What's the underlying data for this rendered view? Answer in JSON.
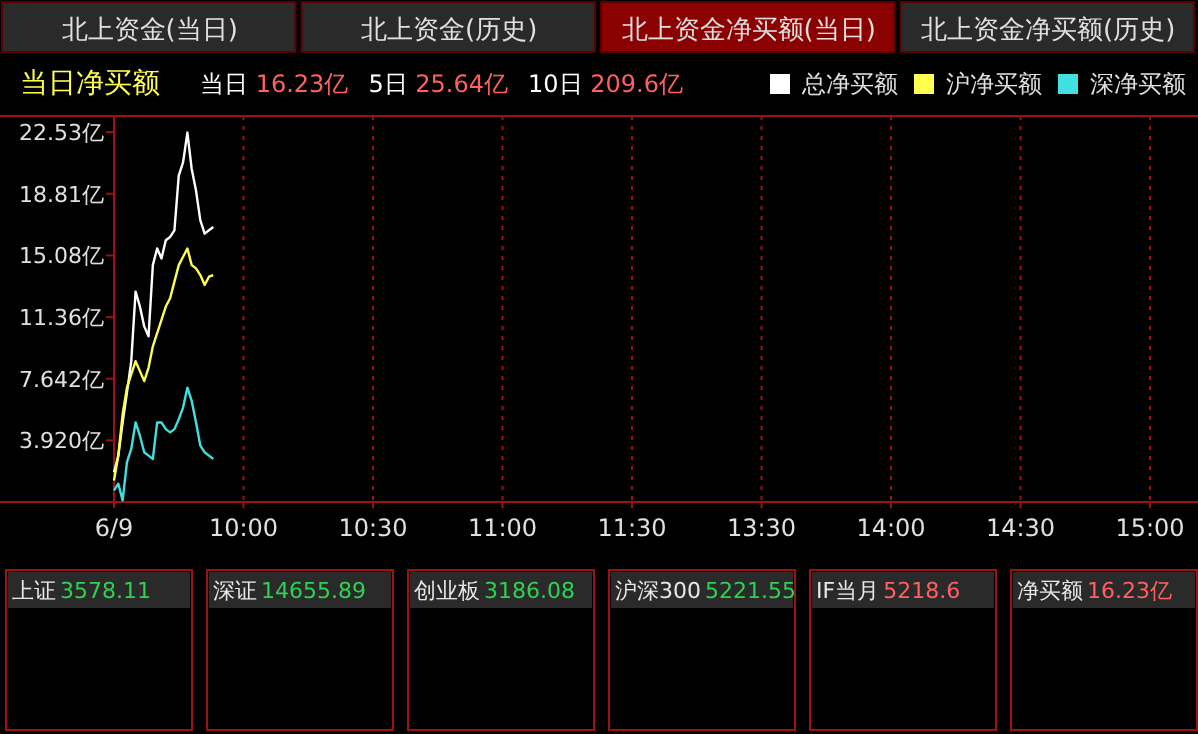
{
  "chart_data": [
    {
      "type": "other",
      "annotations": [
        "北上资金(当日)",
        "北上资金(历史)",
        "北上资金净买额(当日)",
        "北上资金净买额(历史)"
      ],
      "colors": [
        "#2a2a2a",
        "#2a2a2a",
        "#8b0000",
        "#2a2a2a"
      ]
    },
    {
      "type": "line",
      "title": "当日净买额",
      "annotations": [
        "当日 16.23亿",
        "5日 25.64亿",
        "10日 209.6亿"
      ],
      "legend": "top right",
      "grid": "x",
      "line_style": "solid",
      "marker": "none",
      "categories": [
        "6/9",
        null,
        null,
        null,
        null,
        null,
        null,
        null,
        null,
        null,
        null,
        null,
        null,
        null,
        null,
        null,
        null,
        null,
        null,
        null,
        null,
        null,
        null,
        null,
        null,
        null,
        null,
        null,
        null,
        null,
        "10:00",
        null,
        null,
        null,
        null,
        null,
        null,
        null,
        null,
        null,
        null,
        null,
        null,
        null,
        null,
        null,
        null,
        null,
        null,
        null,
        null,
        null,
        null,
        null,
        null,
        null,
        null,
        null,
        null,
        null,
        "10:30",
        null,
        null,
        null,
        null,
        null,
        null,
        null,
        null,
        null,
        null,
        null,
        null,
        null,
        null,
        null,
        null,
        null,
        null,
        null,
        null,
        null,
        null,
        null,
        null,
        null,
        null,
        null,
        null,
        null,
        "11:00",
        null,
        null,
        null,
        null,
        null,
        null,
        null,
        null,
        null,
        null,
        null,
        null,
        null,
        null,
        null,
        null,
        null,
        null,
        null,
        null,
        null,
        null,
        null,
        null,
        null,
        null,
        null,
        null,
        null,
        "11:30",
        null,
        null,
        null,
        null,
        null,
        null,
        null,
        null,
        null,
        null,
        null,
        null,
        null,
        null,
        null,
        null,
        null,
        null,
        null,
        null,
        null,
        null,
        null,
        null,
        null,
        null,
        null,
        null,
        null,
        "13:30",
        null,
        null,
        null,
        null,
        null,
        null,
        null,
        null,
        null,
        null,
        null,
        null,
        null,
        null,
        null,
        null,
        null,
        null,
        null,
        null,
        null,
        null,
        null,
        null,
        null,
        null,
        null,
        null,
        null,
        "14:00",
        null,
        null,
        null,
        null,
        null,
        null,
        null,
        null,
        null,
        null,
        null,
        null,
        null,
        null,
        null,
        null,
        null,
        null,
        null,
        null,
        null,
        null,
        null,
        null,
        null,
        null,
        null,
        null,
        null,
        "14:30",
        null,
        null,
        null,
        null,
        null,
        null,
        null,
        null,
        null,
        null,
        null,
        null,
        null,
        null,
        null,
        null,
        null,
        null,
        null,
        null,
        null,
        null,
        null,
        null,
        null,
        null,
        null,
        null,
        null,
        "15:00"
      ],
      "ylim": [
        0.2,
        23.5
      ],
      "yticks": [
        {
          "value": 3.92,
          "label": "3.920亿"
        },
        {
          "value": 7.642,
          "label": "7.642亿"
        },
        {
          "value": 11.36,
          "label": "11.36亿"
        },
        {
          "value": 15.08,
          "label": "15.08亿"
        },
        {
          "value": 18.81,
          "label": "18.81亿"
        },
        {
          "value": 22.53,
          "label": "22.53亿"
        }
      ],
      "series": [
        {
          "name": "总净买额",
          "color": "#ffffff",
          "values": [
            2.0,
            3.0,
            5.0,
            6.8,
            8.7,
            12.9,
            12.0,
            10.8,
            10.2,
            14.5,
            15.5,
            14.9,
            16.0,
            16.2,
            16.6,
            19.9,
            20.7,
            22.5,
            20.3,
            19.0,
            17.2,
            16.4,
            16.6,
            16.8,
            null,
            null,
            null,
            null,
            null,
            null,
            null,
            null,
            null,
            null,
            null,
            null,
            null,
            null,
            null,
            null,
            null,
            null,
            null,
            null,
            null,
            null,
            null,
            null,
            null,
            null,
            null,
            null,
            null,
            null,
            null,
            null,
            null,
            null,
            null,
            null,
            null,
            null,
            null,
            null,
            null,
            null,
            null,
            null,
            null,
            null,
            null,
            null,
            null,
            null,
            null,
            null,
            null,
            null,
            null,
            null,
            null,
            null,
            null,
            null,
            null,
            null,
            null,
            null,
            null,
            null,
            null,
            null,
            null,
            null,
            null,
            null,
            null,
            null,
            null,
            null,
            null,
            null,
            null,
            null,
            null,
            null,
            null,
            null,
            null,
            null,
            null,
            null,
            null,
            null,
            null,
            null,
            null,
            null,
            null,
            null,
            null,
            null,
            null,
            null,
            null,
            null,
            null,
            null,
            null,
            null,
            null,
            null,
            null,
            null,
            null,
            null,
            null,
            null,
            null,
            null,
            null,
            null,
            null,
            null,
            null,
            null,
            null,
            null,
            null,
            null,
            null,
            null,
            null,
            null,
            null,
            null,
            null,
            null,
            null,
            null,
            null,
            null,
            null,
            null,
            null,
            null,
            null,
            null,
            null,
            null,
            null,
            null,
            null,
            null,
            null,
            null,
            null,
            null,
            null,
            null,
            null,
            null,
            null,
            null,
            null,
            null,
            null,
            null,
            null,
            null,
            null,
            null,
            null,
            null,
            null,
            null,
            null,
            null,
            null,
            null,
            null,
            null,
            null,
            null,
            null,
            null,
            null,
            null,
            null,
            null,
            null,
            null,
            null,
            null,
            null,
            null,
            null,
            null,
            null,
            null,
            null,
            null,
            null,
            null,
            null,
            null,
            null,
            null,
            null,
            null,
            null,
            null,
            null,
            null,
            null,
            null,
            null,
            null,
            null,
            null,
            null
          ]
        },
        {
          "name": "沪净买额",
          "color": "#ffff50",
          "values": [
            1.5,
            3.0,
            5.5,
            7.1,
            7.9,
            8.7,
            8.1,
            7.5,
            8.3,
            9.6,
            10.4,
            11.2,
            12.0,
            12.5,
            13.5,
            14.5,
            15.0,
            15.5,
            14.5,
            14.3,
            13.9,
            13.3,
            13.8,
            13.9,
            null,
            null,
            null,
            null,
            null,
            null,
            null,
            null,
            null,
            null,
            null,
            null,
            null,
            null,
            null,
            null,
            null,
            null,
            null,
            null,
            null,
            null,
            null,
            null,
            null,
            null,
            null,
            null,
            null,
            null,
            null,
            null,
            null,
            null,
            null,
            null,
            null,
            null,
            null,
            null,
            null,
            null,
            null,
            null,
            null,
            null,
            null,
            null,
            null,
            null,
            null,
            null,
            null,
            null,
            null,
            null,
            null,
            null,
            null,
            null,
            null,
            null,
            null,
            null,
            null,
            null,
            null,
            null,
            null,
            null,
            null,
            null,
            null,
            null,
            null,
            null,
            null,
            null,
            null,
            null,
            null,
            null,
            null,
            null,
            null,
            null,
            null,
            null,
            null,
            null,
            null,
            null,
            null,
            null,
            null,
            null,
            null,
            null,
            null,
            null,
            null,
            null,
            null,
            null,
            null,
            null,
            null,
            null,
            null,
            null,
            null,
            null,
            null,
            null,
            null,
            null,
            null,
            null,
            null,
            null,
            null,
            null,
            null,
            null,
            null,
            null,
            null,
            null,
            null,
            null,
            null,
            null,
            null,
            null,
            null,
            null,
            null,
            null,
            null,
            null,
            null,
            null,
            null,
            null,
            null,
            null,
            null,
            null,
            null,
            null,
            null,
            null,
            null,
            null,
            null,
            null,
            null,
            null,
            null,
            null,
            null,
            null,
            null,
            null,
            null,
            null,
            null,
            null,
            null,
            null,
            null,
            null,
            null,
            null,
            null,
            null,
            null,
            null,
            null,
            null,
            null,
            null,
            null,
            null,
            null,
            null,
            null,
            null,
            null,
            null,
            null,
            null,
            null,
            null,
            null,
            null,
            null,
            null,
            null,
            null,
            null,
            null,
            null,
            null,
            null,
            null,
            null,
            null,
            null,
            null,
            null,
            null,
            null,
            null,
            null,
            null,
            null
          ]
        },
        {
          "name": "深净买额",
          "color": "#40e0e0",
          "values": [
            0.9,
            1.3,
            0.3,
            2.6,
            3.4,
            5.0,
            4.2,
            3.2,
            3.0,
            2.8,
            5.0,
            5.0,
            4.6,
            4.4,
            4.6,
            5.2,
            5.9,
            7.1,
            6.3,
            5.0,
            3.6,
            3.2,
            3.0,
            2.8,
            null,
            null,
            null,
            null,
            null,
            null,
            null,
            null,
            null,
            null,
            null,
            null,
            null,
            null,
            null,
            null,
            null,
            null,
            null,
            null,
            null,
            null,
            null,
            null,
            null,
            null,
            null,
            null,
            null,
            null,
            null,
            null,
            null,
            null,
            null,
            null,
            null,
            null,
            null,
            null,
            null,
            null,
            null,
            null,
            null,
            null,
            null,
            null,
            null,
            null,
            null,
            null,
            null,
            null,
            null,
            null,
            null,
            null,
            null,
            null,
            null,
            null,
            null,
            null,
            null,
            null,
            null,
            null,
            null,
            null,
            null,
            null,
            null,
            null,
            null,
            null,
            null,
            null,
            null,
            null,
            null,
            null,
            null,
            null,
            null,
            null,
            null,
            null,
            null,
            null,
            null,
            null,
            null,
            null,
            null,
            null,
            null,
            null,
            null,
            null,
            null,
            null,
            null,
            null,
            null,
            null,
            null,
            null,
            null,
            null,
            null,
            null,
            null,
            null,
            null,
            null,
            null,
            null,
            null,
            null,
            null,
            null,
            null,
            null,
            null,
            null,
            null,
            null,
            null,
            null,
            null,
            null,
            null,
            null,
            null,
            null,
            null,
            null,
            null,
            null,
            null,
            null,
            null,
            null,
            null,
            null,
            null,
            null,
            null,
            null,
            null,
            null,
            null,
            null,
            null,
            null,
            null,
            null,
            null,
            null,
            null,
            null,
            null,
            null,
            null,
            null,
            null,
            null,
            null,
            null,
            null,
            null,
            null,
            null,
            null,
            null,
            null,
            null,
            null,
            null,
            null,
            null,
            null,
            null,
            null,
            null,
            null,
            null,
            null,
            null,
            null,
            null,
            null,
            null,
            null,
            null,
            null,
            null,
            null,
            null,
            null,
            null,
            null,
            null,
            null,
            null,
            null,
            null,
            null,
            null,
            null,
            null,
            null,
            null,
            null,
            null,
            null
          ]
        }
      ]
    },
    {
      "type": "other",
      "title": "上证",
      "annotations": [
        "3578.11"
      ],
      "color": "#30d050"
    },
    {
      "type": "other",
      "title": "深证",
      "annotations": [
        "14655.89"
      ],
      "color": "#30d050"
    },
    {
      "type": "other",
      "title": "创业板",
      "annotations": [
        "3186.08"
      ],
      "color": "#30d050"
    },
    {
      "type": "other",
      "title": "沪深300",
      "annotations": [
        "5221.55"
      ],
      "color": "#30d050"
    },
    {
      "type": "other",
      "title": "IF当月",
      "annotations": [
        "5218.6"
      ],
      "color": "#ff6060"
    },
    {
      "type": "other",
      "title": "净买额",
      "annotations": [
        "16.23亿"
      ],
      "color": "#ff6060"
    }
  ]
}
